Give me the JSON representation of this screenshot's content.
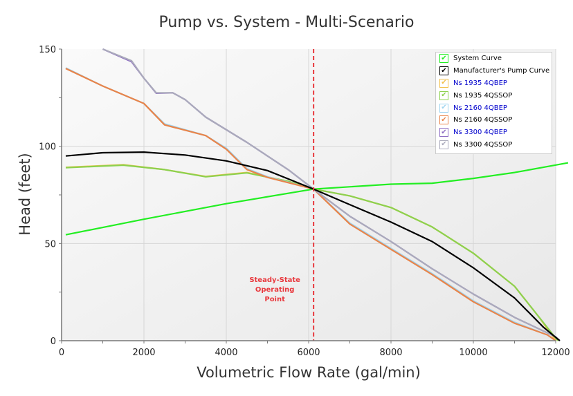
{
  "chart_data": {
    "type": "line",
    "title": "Pump vs. System - Multi-Scenario",
    "xlabel": "Volumetric Flow Rate (gal/min)",
    "ylabel": "Head (feet)",
    "xlim": [
      0,
      12300
    ],
    "ylim": [
      0,
      150
    ],
    "xticks": [
      0,
      2000,
      4000,
      6000,
      8000,
      10000,
      12000
    ],
    "xtick_labels": [
      "0",
      "2000",
      "4000",
      "6000",
      "8000",
      "10000",
      "12000"
    ],
    "yticks": [
      0,
      50,
      100,
      150
    ],
    "ytick_labels": [
      "0",
      "50",
      "100",
      "150"
    ],
    "grid": true,
    "legend_position": "top-right",
    "operating_point": {
      "x": 6120,
      "y": 78,
      "label_lines": [
        "Steady-State",
        "Operating",
        "Point"
      ],
      "color": "#e8383d"
    },
    "series": [
      {
        "name": "System Curve",
        "color": "#22ee22",
        "legend_text_color": "#000000",
        "checked": true,
        "points": [
          [
            100,
            54.5
          ],
          [
            2000,
            62.5
          ],
          [
            4000,
            70.5
          ],
          [
            6120,
            78
          ],
          [
            8000,
            80.5
          ],
          [
            9000,
            81
          ],
          [
            10000,
            83.5
          ],
          [
            11000,
            86.5
          ],
          [
            12300,
            91.5
          ]
        ]
      },
      {
        "name": "Manufacturer's Pump Curve",
        "color": "#000000",
        "legend_text_color": "#000000",
        "checked": true,
        "points": [
          [
            100,
            95
          ],
          [
            1000,
            96.7
          ],
          [
            2000,
            97
          ],
          [
            3000,
            95.5
          ],
          [
            4000,
            92.5
          ],
          [
            5000,
            87.5
          ],
          [
            6120,
            78
          ],
          [
            7000,
            70
          ],
          [
            8000,
            61
          ],
          [
            9000,
            51
          ],
          [
            10000,
            37.5
          ],
          [
            11000,
            22
          ],
          [
            11700,
            7
          ],
          [
            12100,
            0
          ]
        ]
      },
      {
        "name": "Ns 1935 4QBEP",
        "color": "#f2c14e",
        "legend_text_color": "#0000cc",
        "checked": true,
        "points": [
          [
            100,
            89.2
          ],
          [
            1500,
            90.5
          ],
          [
            2500,
            88
          ],
          [
            3500,
            84.5
          ],
          [
            4500,
            86.5
          ],
          [
            5500,
            82
          ],
          [
            6120,
            78
          ],
          [
            7000,
            74.5
          ],
          [
            8000,
            68.5
          ],
          [
            9000,
            58.5
          ],
          [
            10000,
            45
          ],
          [
            11000,
            28
          ],
          [
            11600,
            12
          ],
          [
            12000,
            0
          ]
        ]
      },
      {
        "name": "Ns 1935 4QSSOP",
        "color": "#8cd14e",
        "legend_text_color": "#000000",
        "checked": true,
        "points": [
          [
            100,
            89
          ],
          [
            1500,
            90.3
          ],
          [
            2500,
            88
          ],
          [
            3500,
            84.3
          ],
          [
            4500,
            86.3
          ],
          [
            5500,
            82
          ],
          [
            6120,
            78
          ],
          [
            7000,
            74.5
          ],
          [
            8000,
            68.5
          ],
          [
            9000,
            58.5
          ],
          [
            10000,
            45
          ],
          [
            11000,
            28
          ],
          [
            11600,
            12
          ],
          [
            12050,
            0
          ]
        ]
      },
      {
        "name": "Ns 2160 4QBEP",
        "color": "#9fd4ef",
        "legend_text_color": "#0000cc",
        "checked": true,
        "points": [
          [
            100,
            140.3
          ],
          [
            1000,
            131
          ],
          [
            2000,
            122
          ],
          [
            2500,
            111.5
          ],
          [
            3500,
            105.5
          ],
          [
            4000,
            99
          ],
          [
            4500,
            88.5
          ],
          [
            5000,
            84.3
          ],
          [
            6120,
            78
          ],
          [
            7000,
            60.5
          ],
          [
            8000,
            47.5
          ],
          [
            9000,
            34.5
          ],
          [
            10000,
            20.5
          ],
          [
            11000,
            9.5
          ],
          [
            11800,
            3
          ],
          [
            12000,
            0
          ]
        ]
      },
      {
        "name": "Ns 2160 4QSSOP",
        "color": "#e8844a",
        "legend_text_color": "#000000",
        "checked": true,
        "points": [
          [
            100,
            140
          ],
          [
            1000,
            131
          ],
          [
            2000,
            122
          ],
          [
            2500,
            111
          ],
          [
            3500,
            105.5
          ],
          [
            4000,
            98.5
          ],
          [
            4500,
            88
          ],
          [
            5000,
            84
          ],
          [
            6120,
            78
          ],
          [
            7000,
            60
          ],
          [
            8000,
            47
          ],
          [
            9000,
            34
          ],
          [
            10000,
            20
          ],
          [
            11000,
            9
          ],
          [
            11800,
            3
          ],
          [
            12000,
            0
          ]
        ]
      },
      {
        "name": "Ns 3300 4QBEP",
        "color": "#8f6fc4",
        "legend_text_color": "#0000cc",
        "checked": true,
        "points": [
          [
            1000,
            150
          ],
          [
            1700,
            143.5
          ],
          [
            2000,
            135
          ],
          [
            2300,
            127.3
          ],
          [
            2700,
            127.5
          ],
          [
            3000,
            124
          ],
          [
            3500,
            115
          ],
          [
            4500,
            102
          ],
          [
            5500,
            88
          ],
          [
            6120,
            78
          ],
          [
            7000,
            64
          ],
          [
            8000,
            51
          ],
          [
            9000,
            37
          ],
          [
            10000,
            24
          ],
          [
            11000,
            12
          ],
          [
            12000,
            2
          ],
          [
            12100,
            0
          ]
        ]
      },
      {
        "name": "Ns 3300 4QSSOP",
        "color": "#aaaabb",
        "legend_text_color": "#000000",
        "checked": true,
        "points": [
          [
            1000,
            150
          ],
          [
            1700,
            144
          ],
          [
            2000,
            135
          ],
          [
            2300,
            127.5
          ],
          [
            2700,
            127.5
          ],
          [
            3000,
            124
          ],
          [
            3500,
            115
          ],
          [
            4500,
            102
          ],
          [
            5500,
            88
          ],
          [
            6120,
            78
          ],
          [
            7000,
            64
          ],
          [
            8000,
            51
          ],
          [
            9000,
            37
          ],
          [
            10000,
            24
          ],
          [
            11000,
            12
          ],
          [
            12000,
            2
          ],
          [
            12100,
            0
          ]
        ]
      }
    ]
  }
}
